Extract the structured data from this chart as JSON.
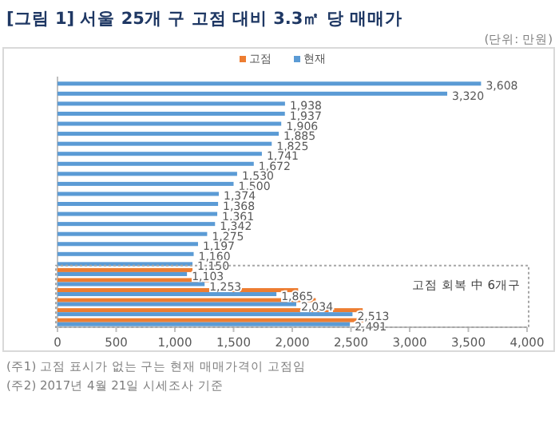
{
  "chart_data": {
    "type": "bar",
    "orientation": "horizontal",
    "title": "[그림 1] 서울 25개 구 고점 대비 3.3㎡ 당 매매가",
    "annotations": [
      "(단위: 만원)",
      "고점 회복 中 6개구",
      "(주1) 고점 표시가 없는 구는 현재 매매가격이 고점임",
      "(주2) 2017년 4월 21일 시세조사 기준"
    ],
    "categories": [
      null,
      null,
      null,
      null,
      null,
      null,
      null,
      null,
      null,
      null,
      null,
      null,
      null,
      null,
      null,
      null,
      null,
      null,
      null,
      null,
      null,
      null,
      null,
      null,
      null
    ],
    "series": [
      {
        "name": "고점",
        "color": "#ed7d31",
        "values": [
          null,
          null,
          null,
          null,
          null,
          null,
          null,
          null,
          null,
          null,
          null,
          null,
          null,
          null,
          null,
          null,
          null,
          null,
          null,
          1150,
          1300,
          2050,
          2200,
          2600,
          2650
        ]
      },
      {
        "name": "현재",
        "color": "#5b9bd5",
        "values": [
          3608,
          3320,
          1938,
          1937,
          1906,
          1885,
          1825,
          1741,
          1672,
          1530,
          1500,
          1374,
          1368,
          1361,
          1342,
          1275,
          1197,
          1160,
          1150,
          1103,
          1253,
          1865,
          2034,
          2513,
          2491
        ],
        "value_labels": [
          "3,608",
          "3,320",
          "1,938",
          "1,937",
          "1,906",
          "1,885",
          "1,825",
          "1,741",
          "1,672",
          "1,530",
          "1,500",
          "1,374",
          "1,368",
          "1,361",
          "1,342",
          "1,275",
          "1,197",
          "1,160",
          "1,150",
          "1,103",
          "1,253",
          "1,865",
          "2,034",
          "2,513",
          "2,491"
        ]
      }
    ],
    "xlim": [
      0,
      4000
    ],
    "xticks": [
      0,
      500,
      {
        "value": 1000,
        "label": "1,000"
      },
      {
        "value": 1500,
        "label": "1,500"
      },
      {
        "value": 2000,
        "label": "2,000"
      },
      {
        "value": 2500,
        "label": "2,500"
      },
      {
        "value": 3000,
        "label": "3,000"
      },
      {
        "value": 3500,
        "label": "3,500"
      },
      {
        "value": 4000,
        "label": "4,000"
      }
    ],
    "legend": "top"
  }
}
